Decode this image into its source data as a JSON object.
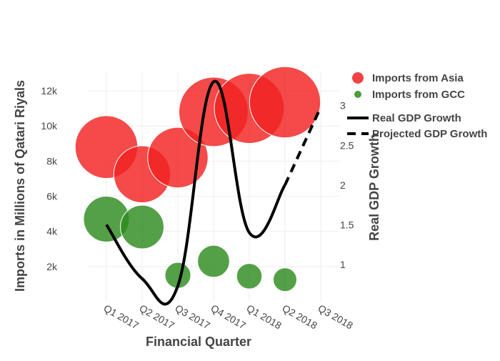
{
  "chart_data": {
    "type": "scatter",
    "title": "",
    "categories": [
      "Q1 2017",
      "Q2 2017",
      "Q3 2017",
      "Q4 2017",
      "Q1 2018",
      "Q2 2018",
      "Q3 2018"
    ],
    "xlabel": "Financial Quarter",
    "ylabel": "Imports in Millions of Qatari Riyals",
    "y2label": "Real GDP Growth",
    "ylim": [
      0,
      13100
    ],
    "y2lim": [
      0.53,
      3.43
    ],
    "yticks": [
      {
        "v": 2000,
        "label": "2k"
      },
      {
        "v": 4000,
        "label": "4k"
      },
      {
        "v": 6000,
        "label": "6k"
      },
      {
        "v": 8000,
        "label": "8k"
      },
      {
        "v": 10000,
        "label": "10k"
      },
      {
        "v": 12000,
        "label": "12k"
      }
    ],
    "y2ticks": [
      {
        "v": 1,
        "label": "1"
      },
      {
        "v": 1.5,
        "label": "1.5"
      },
      {
        "v": 2,
        "label": "2"
      },
      {
        "v": 2.5,
        "label": "2.5"
      },
      {
        "v": 3,
        "label": "3"
      }
    ],
    "legend_position": "top-right",
    "grid": true,
    "series": [
      {
        "name": "Imports from Asia",
        "kind": "bubble",
        "axis": "y",
        "color": "#f22222",
        "values": [
          8800,
          7250,
          8200,
          10800,
          11000,
          11350,
          null
        ]
      },
      {
        "name": "Imports from GCC",
        "kind": "bubble",
        "axis": "y",
        "color": "#2e8b1e",
        "values": [
          4700,
          4250,
          1500,
          2300,
          1450,
          1250,
          null
        ]
      },
      {
        "name": "Real GDP Growth",
        "kind": "line",
        "axis": "y2",
        "color": "#000000",
        "dash": "solid",
        "values": [
          1.5,
          0.82,
          0.73,
          3.3,
          1.4,
          2.0,
          null
        ]
      },
      {
        "name": "Projected GDP Growth",
        "kind": "line",
        "axis": "y2",
        "color": "#000000",
        "dash": "dash",
        "values": [
          null,
          null,
          null,
          null,
          null,
          2.0,
          2.98
        ]
      }
    ]
  }
}
